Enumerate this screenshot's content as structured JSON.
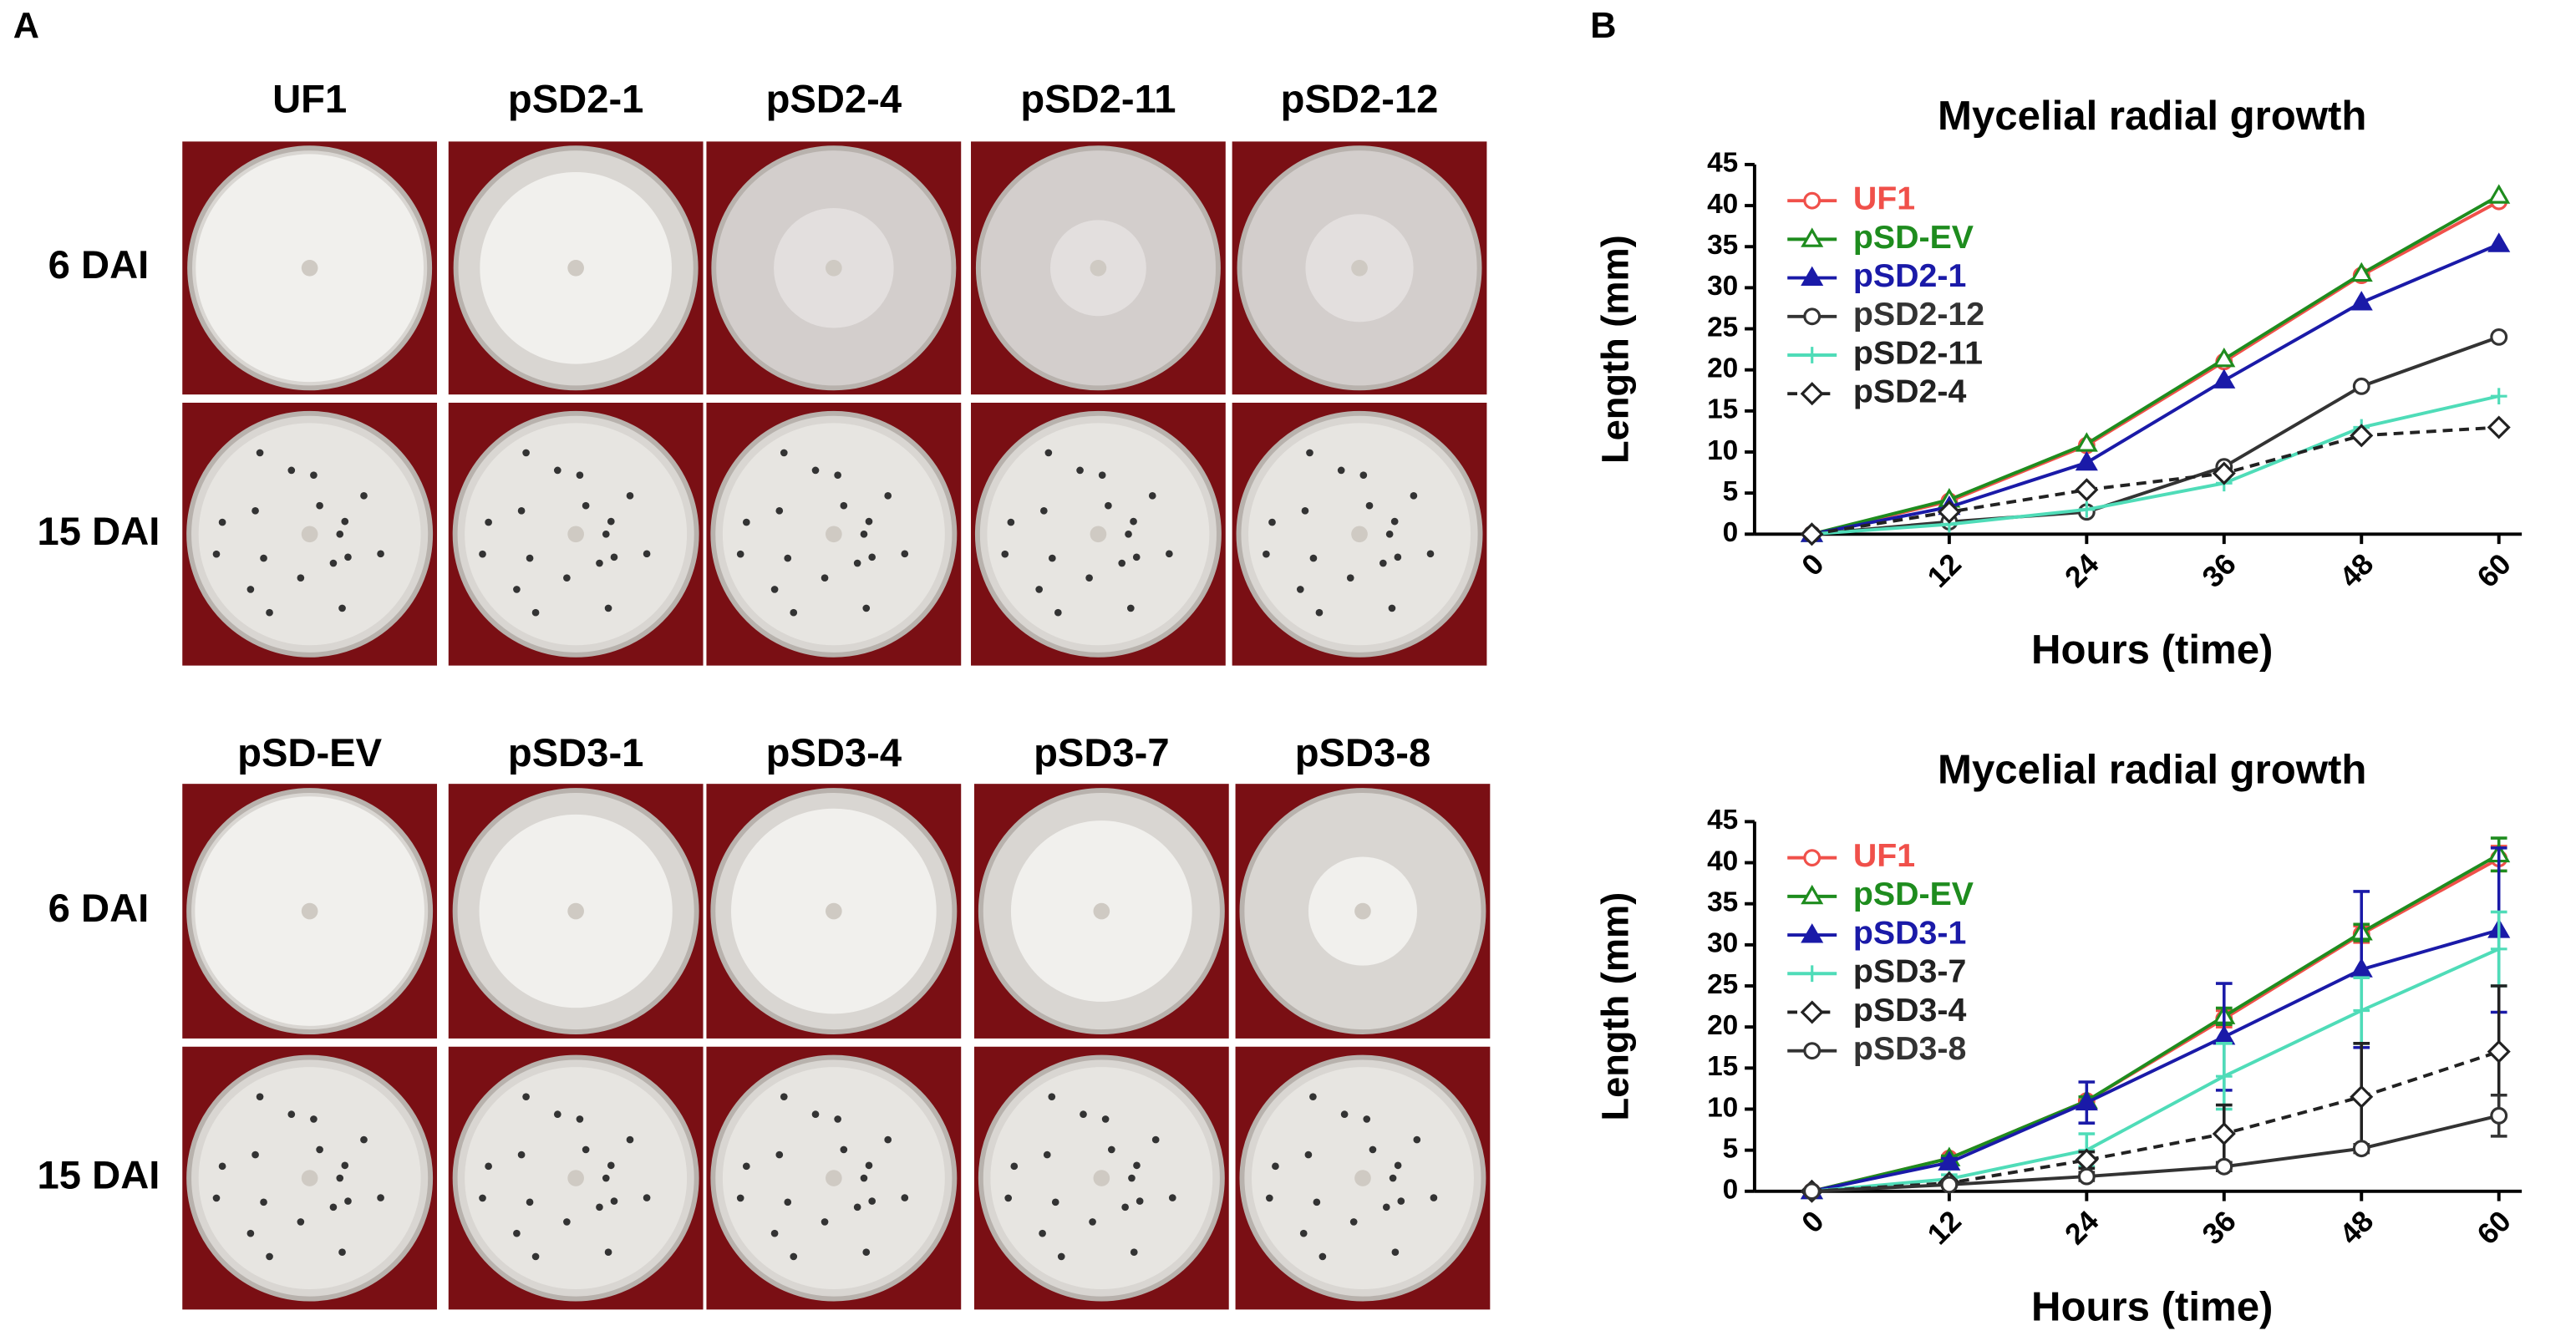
{
  "panel_labels": [
    "A",
    "B"
  ],
  "panel_a": [
    {
      "columns": [
        "UF1",
        "pSD2-1",
        "pSD2-4",
        "pSD2-11",
        "pSD2-12"
      ],
      "rows": [
        "6 DAI",
        "15 DAI"
      ]
    },
    {
      "columns": [
        "pSD-EV",
        "pSD3-1",
        "pSD3-4",
        "pSD3-7",
        "pSD3-8"
      ],
      "rows": [
        "6 DAI",
        "15 DAI"
      ]
    }
  ],
  "chart_data": [
    {
      "type": "line",
      "title": "Mycelial radial growth",
      "x_label": "Hours (time)",
      "y_label": "Length  (mm)",
      "x": [
        0,
        12,
        24,
        36,
        48,
        60
      ],
      "xlim": [
        -5,
        62
      ],
      "xticks": [
        0,
        12,
        24,
        36,
        48,
        60
      ],
      "ylim": [
        0,
        45
      ],
      "yticks": [
        0,
        5,
        10,
        15,
        20,
        25,
        30,
        35,
        40,
        45
      ],
      "series": [
        {
          "name": "UF1",
          "color": "#f0504a",
          "marker": "circle",
          "filled": false,
          "dashed": false,
          "values": [
            0,
            4,
            10.8,
            21,
            31.5,
            40.5
          ]
        },
        {
          "name": "pSD-EV",
          "color": "#1e8c1e",
          "marker": "triangle",
          "filled": false,
          "dashed": false,
          "values": [
            0,
            4.2,
            11,
            21.3,
            31.7,
            41.2
          ]
        },
        {
          "name": "pSD2-1",
          "color": "#1a1aa8",
          "marker": "triangle",
          "filled": true,
          "dashed": false,
          "values": [
            0,
            3.3,
            8.7,
            18.7,
            28.2,
            35.3
          ]
        },
        {
          "name": "pSD2-12",
          "color": "#333333",
          "marker": "circle",
          "filled": false,
          "dashed": false,
          "values": [
            0,
            1.5,
            2.7,
            8.2,
            18,
            24
          ]
        },
        {
          "name": "pSD2-11",
          "color": "#4fdcb8",
          "marker": "plus",
          "filled": false,
          "dashed": false,
          "values": [
            0,
            1.2,
            3,
            6.2,
            13,
            16.8
          ]
        },
        {
          "name": "pSD2-4",
          "color": "#222222",
          "marker": "diamond",
          "filled": false,
          "dashed": true,
          "values": [
            0,
            2.7,
            5.4,
            7.4,
            12,
            13
          ]
        }
      ]
    },
    {
      "type": "line",
      "title": "Mycelial radial growth",
      "x_label": "Hours (time)",
      "y_label": "Length  (mm)",
      "x": [
        0,
        12,
        24,
        36,
        48,
        60
      ],
      "xlim": [
        -5,
        62
      ],
      "xticks": [
        0,
        12,
        24,
        36,
        48,
        60
      ],
      "ylim": [
        0,
        45
      ],
      "yticks": [
        0,
        5,
        10,
        15,
        20,
        25,
        30,
        35,
        40,
        45
      ],
      "series": [
        {
          "name": "UF1",
          "color": "#f0504a",
          "marker": "circle",
          "filled": false,
          "dashed": false,
          "values": [
            0,
            4,
            11,
            21,
            31.3,
            40.5
          ],
          "errors": [
            0,
            0.3,
            0.5,
            1,
            1,
            1.5
          ]
        },
        {
          "name": "pSD-EV",
          "color": "#1e8c1e",
          "marker": "triangle",
          "filled": false,
          "dashed": false,
          "values": [
            0,
            4,
            11,
            21.3,
            31.5,
            41
          ],
          "errors": [
            0,
            0.3,
            0.5,
            1,
            1,
            2
          ]
        },
        {
          "name": "pSD3-1",
          "color": "#1a1aa8",
          "marker": "triangle",
          "filled": true,
          "dashed": false,
          "values": [
            0,
            3.5,
            10.8,
            18.8,
            27,
            31.8
          ],
          "errors": [
            0,
            0.5,
            2.5,
            6.5,
            9.5,
            10
          ]
        },
        {
          "name": "pSD3-7",
          "color": "#4fdcb8",
          "marker": "plus",
          "filled": false,
          "dashed": false,
          "values": [
            0,
            1.5,
            5,
            14,
            22,
            29.5
          ],
          "errors": [
            0,
            0.5,
            2,
            4,
            4,
            4.5
          ]
        },
        {
          "name": "pSD3-4",
          "color": "#222222",
          "marker": "diamond",
          "filled": false,
          "dashed": true,
          "values": [
            0,
            1,
            3.8,
            7,
            11.5,
            17
          ],
          "errors": [
            0,
            0.3,
            1,
            3.5,
            6.5,
            8
          ]
        },
        {
          "name": "pSD3-8",
          "color": "#333333",
          "marker": "circle",
          "filled": false,
          "dashed": false,
          "values": [
            0,
            0.8,
            1.8,
            3,
            5.2,
            9.2
          ],
          "errors": [
            0,
            0.2,
            0.5,
            0.5,
            0.5,
            2.5
          ]
        }
      ]
    }
  ]
}
